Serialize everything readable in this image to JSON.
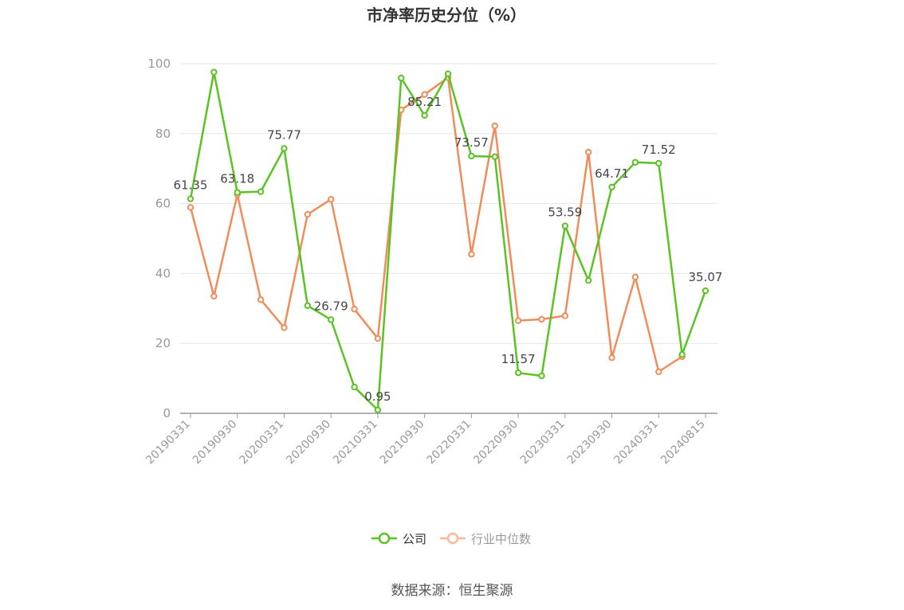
{
  "chart_data": {
    "type": "line",
    "title": "市净率历史分位（%）",
    "ylim": [
      0,
      100
    ],
    "yticks": [
      0,
      20,
      40,
      60,
      80,
      100
    ],
    "x": [
      "20190331",
      "20190630",
      "20190930",
      "20191231",
      "20200331",
      "20200630",
      "20200930",
      "20201231",
      "20210331",
      "20210630",
      "20210930",
      "20211231",
      "20220331",
      "20220630",
      "20220930",
      "20221231",
      "20230331",
      "20230630",
      "20230930",
      "20231231",
      "20240331",
      "20240630",
      "20240815"
    ],
    "xtick_labels": [
      "20190331",
      "20190930",
      "20200331",
      "20200930",
      "20210331",
      "20210930",
      "20220331",
      "20220930",
      "20230331",
      "20230930",
      "20240331",
      "20240815"
    ],
    "grid": true,
    "legend_position": "bottom",
    "series": [
      {
        "name": "公司",
        "color": "#5ac322",
        "values": [
          61.35,
          97.6,
          63.18,
          63.4,
          75.77,
          30.8,
          26.79,
          7.5,
          0.95,
          95.9,
          85.21,
          97.1,
          73.57,
          73.4,
          11.57,
          10.7,
          53.59,
          38.0,
          64.71,
          71.8,
          71.52,
          16.8,
          35.07
        ],
        "labels": [
          "61.35",
          null,
          "63.18",
          null,
          "75.77",
          null,
          "26.79",
          null,
          "0.95",
          null,
          "85.21",
          null,
          "73.57",
          null,
          "11.57",
          null,
          "53.59",
          null,
          "64.71",
          null,
          "71.52",
          null,
          "35.07"
        ]
      },
      {
        "name": "行业中位数",
        "color": "#f08c5a",
        "values": [
          58.9,
          33.5,
          62.6,
          32.5,
          24.5,
          56.9,
          61.2,
          29.8,
          21.4,
          86.8,
          91.2,
          96.0,
          45.5,
          82.2,
          26.5,
          26.9,
          27.9,
          74.7,
          15.9,
          39.0,
          11.9,
          16.2,
          null
        ]
      }
    ]
  },
  "legend": {
    "items": [
      {
        "label": "公司",
        "color": "#5ac322"
      },
      {
        "label": "行业中位数",
        "color": "#f7b89b",
        "text_color": "#999999"
      }
    ]
  },
  "source": "数据来源：恒生聚源"
}
